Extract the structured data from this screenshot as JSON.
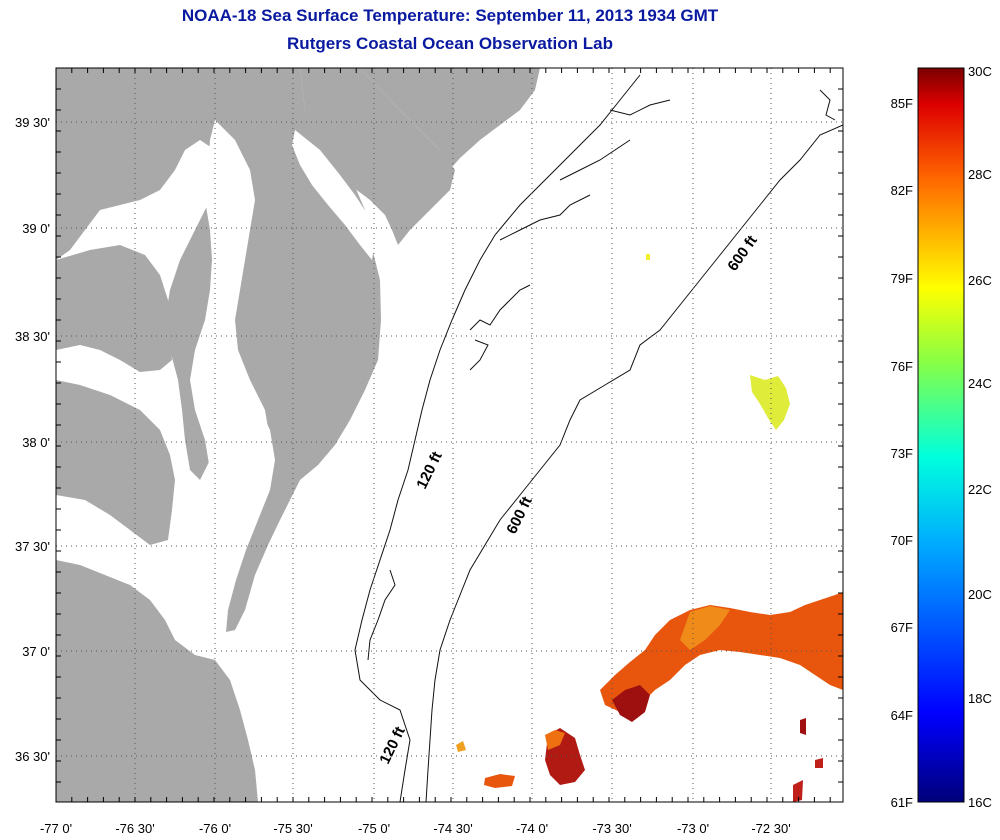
{
  "title": "NOAA-18 Sea Surface Temperature:  September 11, 2013 1934 GMT",
  "subtitle": "Rutgers Coastal Ocean Observation Lab",
  "x_ticks": [
    "-77 0'",
    "-76 30'",
    "-76 0'",
    "-75 30'",
    "-75 0'",
    "-74 30'",
    "-74 0'",
    "-73 30'",
    "-73 0'",
    "-72 30'"
  ],
  "y_ticks": [
    "39 30'",
    "39 0'",
    "38 30'",
    "38 0'",
    "37 30'",
    "37 0'",
    "36 30'"
  ],
  "contour_labels": [
    "120 ft",
    "600 ft",
    "600 ft",
    "120 ft"
  ],
  "colorbar": {
    "celsius": [
      "30C",
      "28C",
      "26C",
      "24C",
      "22C",
      "20C",
      "18C",
      "16C"
    ],
    "fahrenheit": [
      "85F",
      "82F",
      "79F",
      "76F",
      "73F",
      "70F",
      "67F",
      "64F",
      "61F"
    ]
  },
  "colors": {
    "land": "#a9a9a9",
    "title": "#0a1aa0",
    "warm": "#e8560e",
    "hot": "#9e1010",
    "mild": "#e0ec3a"
  }
}
